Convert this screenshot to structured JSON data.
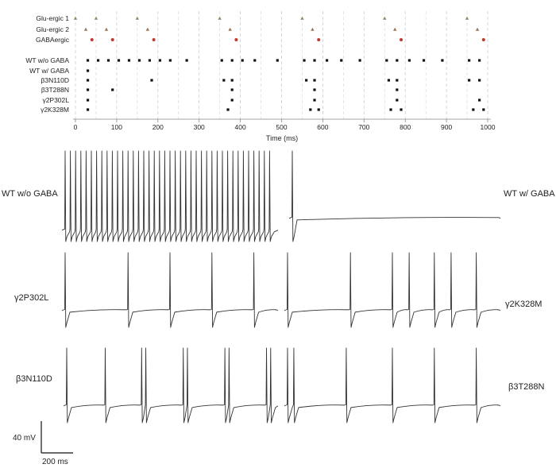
{
  "chart_data": [
    {
      "type": "scatter",
      "xlabel": "Time (ms)",
      "xlim": [
        0,
        1000
      ],
      "x_ticks": [
        "0",
        "100",
        "200",
        "300",
        "400",
        "500",
        "600",
        "700",
        "800",
        "900",
        "1000"
      ],
      "grid": "vertical dashed",
      "rows": [
        {
          "name": "Glu-ergic 1",
          "marker": "triangle",
          "color": "#8a8a6a",
          "x": [
            0,
            50,
            150,
            350,
            550,
            750,
            950
          ]
        },
        {
          "name": "Glu-ergic 2",
          "marker": "triangle",
          "color": "#a07050",
          "x": [
            25,
            75,
            175,
            375,
            575,
            775,
            975
          ]
        },
        {
          "name": "GABAergic",
          "marker": "dot",
          "color": "#c0392b",
          "x": [
            40,
            90,
            190,
            390,
            590,
            790,
            990
          ]
        },
        {
          "name": "WT w/o GABA",
          "marker": "square",
          "color": "#111111",
          "x": [
            30,
            55,
            80,
            105,
            130,
            155,
            180,
            205,
            230,
            270,
            355,
            380,
            405,
            435,
            490,
            555,
            580,
            610,
            645,
            690,
            755,
            780,
            810,
            845,
            890,
            955,
            980
          ]
        },
        {
          "name": "WT w/ GABA",
          "marker": "square",
          "color": "#111111",
          "x": [
            30
          ]
        },
        {
          "name": "β3N110D",
          "marker": "square",
          "color": "#111111",
          "x": [
            30,
            185,
            360,
            380,
            560,
            580,
            760,
            780,
            955,
            980
          ]
        },
        {
          "name": "β3T288N",
          "marker": "square",
          "color": "#111111",
          "x": [
            30,
            90,
            380,
            580,
            780
          ]
        },
        {
          "name": "γ2P302L",
          "marker": "square",
          "color": "#111111",
          "x": [
            30,
            380,
            580,
            780,
            980
          ]
        },
        {
          "name": "γ2K328M",
          "marker": "square",
          "color": "#111111",
          "x": [
            30,
            370,
            570,
            590,
            765,
            790,
            965,
            990
          ]
        }
      ]
    },
    {
      "type": "line",
      "panels": [
        {
          "name": "WT w/o GABA",
          "spikes": [
            0,
            25,
            50,
            75,
            100,
            125,
            150,
            175,
            200,
            225,
            250,
            275,
            300,
            325,
            350,
            375,
            400,
            425,
            450,
            475,
            500,
            525,
            550,
            575,
            600,
            625,
            650,
            675,
            700,
            725,
            750,
            775,
            800,
            825,
            850,
            875,
            900,
            925,
            950,
            975
          ]
        },
        {
          "name": "WT w/ GABA",
          "spikes": [
            0
          ]
        },
        {
          "name": "γ2P302L",
          "spikes": [
            0,
            300,
            500,
            700,
            900
          ]
        },
        {
          "name": "γ2K328M",
          "spikes": [
            0,
            300,
            500,
            580,
            700,
            780,
            900
          ]
        },
        {
          "name": "β3N110D",
          "spikes": [
            0,
            185,
            360,
            380,
            560,
            580,
            760,
            780,
            960,
            980
          ]
        },
        {
          "name": "β3T288N",
          "spikes": [
            0,
            30,
            280,
            500,
            700,
            900
          ]
        }
      ]
    }
  ],
  "scalebar": {
    "voltage": "40 mV",
    "time": "200 ms"
  }
}
